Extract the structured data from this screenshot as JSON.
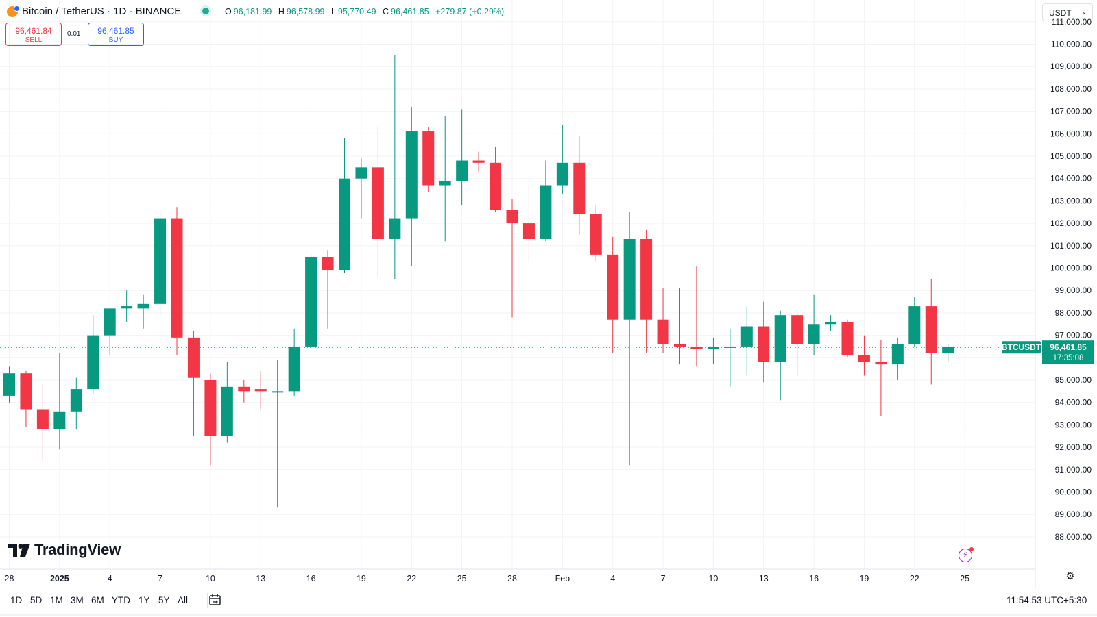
{
  "header": {
    "symbol_title": "Bitcoin / TetherUS · 1D · BINANCE",
    "ohlc": {
      "o_label": "O",
      "o_value": "96,181.99",
      "h_label": "H",
      "h_value": "96,578.99",
      "l_label": "L",
      "l_value": "95,770.49",
      "c_label": "C",
      "c_value": "96,461.85",
      "change": "+279.87 (+0.29%)"
    },
    "status_color": "#22ab94"
  },
  "trade": {
    "sell_price": "96,461.84",
    "sell_label": "SELL",
    "spread": "0.01",
    "buy_price": "96,461.85",
    "buy_label": "BUY"
  },
  "currency_select": "USDT",
  "price_axis": {
    "top_partial": "111,000.00",
    "labels": [
      "110,000.00",
      "109,000.00",
      "108,000.00",
      "107,000.00",
      "106,000.00",
      "105,000.00",
      "104,000.00",
      "103,000.00",
      "102,000.00",
      "101,000.00",
      "100,000.00",
      "99,000.00",
      "98,000.00",
      "97,000.00",
      "95,000.00",
      "94,000.00",
      "93,000.00",
      "92,000.00",
      "91,000.00",
      "90,000.00",
      "89,000.00",
      "88,000.00"
    ]
  },
  "last_price": {
    "symbol_label": "BTCUSDT",
    "price": "96,461.85",
    "countdown": "17:35:08",
    "color": "#089981"
  },
  "colors": {
    "up": "#089981",
    "down": "#f23645",
    "grid": "#f2f3f6"
  },
  "logo_text": "TradingView",
  "time_labels": [
    {
      "label": "28",
      "bold": false
    },
    {
      "label": "2025",
      "bold": true
    },
    {
      "label": "4",
      "bold": false
    },
    {
      "label": "7",
      "bold": false
    },
    {
      "label": "10",
      "bold": false
    },
    {
      "label": "13",
      "bold": false
    },
    {
      "label": "16",
      "bold": false
    },
    {
      "label": "19",
      "bold": false
    },
    {
      "label": "22",
      "bold": false
    },
    {
      "label": "25",
      "bold": false
    },
    {
      "label": "28",
      "bold": false
    },
    {
      "label": "Feb",
      "bold": false
    },
    {
      "label": "4",
      "bold": false
    },
    {
      "label": "7",
      "bold": false
    },
    {
      "label": "10",
      "bold": false
    },
    {
      "label": "13",
      "bold": false
    },
    {
      "label": "16",
      "bold": false
    },
    {
      "label": "19",
      "bold": false
    },
    {
      "label": "22",
      "bold": false
    },
    {
      "label": "25",
      "bold": false
    }
  ],
  "ranges": [
    "1D",
    "5D",
    "1M",
    "3M",
    "6M",
    "YTD",
    "1Y",
    "5Y",
    "All"
  ],
  "clock": "11:54:53 UTC+5:30",
  "chart_data": {
    "type": "candlestick",
    "symbol": "BTCUSDT",
    "interval": "1D",
    "ylim": [
      87500,
      111000
    ],
    "x_start": "2024-12-28",
    "x_end": "2025-02-25",
    "candles": [
      {
        "date": "2024-12-28",
        "o": 94300,
        "h": 95600,
        "l": 94000,
        "c": 95300
      },
      {
        "date": "2024-12-29",
        "o": 95300,
        "h": 95400,
        "l": 92900,
        "c": 93700
      },
      {
        "date": "2024-12-30",
        "o": 93700,
        "h": 94800,
        "l": 91400,
        "c": 92800
      },
      {
        "date": "2024-12-31",
        "o": 92800,
        "h": 96200,
        "l": 91900,
        "c": 93600
      },
      {
        "date": "2025-01-01",
        "o": 93600,
        "h": 95100,
        "l": 92800,
        "c": 94600
      },
      {
        "date": "2025-01-02",
        "o": 94600,
        "h": 97900,
        "l": 94400,
        "c": 97000
      },
      {
        "date": "2025-01-03",
        "o": 97000,
        "h": 98200,
        "l": 96100,
        "c": 98200
      },
      {
        "date": "2025-01-04",
        "o": 98200,
        "h": 99000,
        "l": 97600,
        "c": 98300
      },
      {
        "date": "2025-01-05",
        "o": 98200,
        "h": 98800,
        "l": 97300,
        "c": 98400
      },
      {
        "date": "2025-01-06",
        "o": 98400,
        "h": 102500,
        "l": 97900,
        "c": 102200
      },
      {
        "date": "2025-01-07",
        "o": 102200,
        "h": 102700,
        "l": 96100,
        "c": 96900
      },
      {
        "date": "2025-01-08",
        "o": 96900,
        "h": 97200,
        "l": 92500,
        "c": 95100
      },
      {
        "date": "2025-01-09",
        "o": 95000,
        "h": 95300,
        "l": 91200,
        "c": 92500
      },
      {
        "date": "2025-01-10",
        "o": 92500,
        "h": 95800,
        "l": 92200,
        "c": 94700
      },
      {
        "date": "2025-01-11",
        "o": 94700,
        "h": 95000,
        "l": 94000,
        "c": 94500
      },
      {
        "date": "2025-01-12",
        "o": 94600,
        "h": 95400,
        "l": 93700,
        "c": 94500
      },
      {
        "date": "2025-01-13",
        "o": 94500,
        "h": 95900,
        "l": 89300,
        "c": 94500
      },
      {
        "date": "2025-01-14",
        "o": 94500,
        "h": 97300,
        "l": 94300,
        "c": 96500
      },
      {
        "date": "2025-01-15",
        "o": 96500,
        "h": 100600,
        "l": 96400,
        "c": 100500
      },
      {
        "date": "2025-01-16",
        "o": 100500,
        "h": 100800,
        "l": 97300,
        "c": 99900
      },
      {
        "date": "2025-01-17",
        "o": 99900,
        "h": 105800,
        "l": 99800,
        "c": 104000
      },
      {
        "date": "2025-01-18",
        "o": 104000,
        "h": 104900,
        "l": 102200,
        "c": 104500
      },
      {
        "date": "2025-01-19",
        "o": 104500,
        "h": 106300,
        "l": 99600,
        "c": 101300
      },
      {
        "date": "2025-01-20",
        "o": 101300,
        "h": 109500,
        "l": 99500,
        "c": 102200
      },
      {
        "date": "2025-01-21",
        "o": 102200,
        "h": 107200,
        "l": 100100,
        "c": 106100
      },
      {
        "date": "2025-01-22",
        "o": 106100,
        "h": 106300,
        "l": 103400,
        "c": 103700
      },
      {
        "date": "2025-01-23",
        "o": 103700,
        "h": 106800,
        "l": 101200,
        "c": 103900
      },
      {
        "date": "2025-01-24",
        "o": 103900,
        "h": 107100,
        "l": 102800,
        "c": 104800
      },
      {
        "date": "2025-01-25",
        "o": 104800,
        "h": 105200,
        "l": 104300,
        "c": 104700
      },
      {
        "date": "2025-01-26",
        "o": 104700,
        "h": 105400,
        "l": 102500,
        "c": 102600
      },
      {
        "date": "2025-01-27",
        "o": 102600,
        "h": 103100,
        "l": 97800,
        "c": 102000
      },
      {
        "date": "2025-01-28",
        "o": 102000,
        "h": 103800,
        "l": 100300,
        "c": 101300
      },
      {
        "date": "2025-01-29",
        "o": 101300,
        "h": 104800,
        "l": 101200,
        "c": 103700
      },
      {
        "date": "2025-01-30",
        "o": 103700,
        "h": 106400,
        "l": 103300,
        "c": 104700
      },
      {
        "date": "2025-01-31",
        "o": 104700,
        "h": 105900,
        "l": 101500,
        "c": 102400
      },
      {
        "date": "2025-02-01",
        "o": 102400,
        "h": 102800,
        "l": 100300,
        "c": 100600
      },
      {
        "date": "2025-02-02",
        "o": 100600,
        "h": 101400,
        "l": 96200,
        "c": 97700
      },
      {
        "date": "2025-02-03",
        "o": 97700,
        "h": 102500,
        "l": 91200,
        "c": 101300
      },
      {
        "date": "2025-02-04",
        "o": 101300,
        "h": 101700,
        "l": 96200,
        "c": 97700
      },
      {
        "date": "2025-02-05",
        "o": 97700,
        "h": 99100,
        "l": 96200,
        "c": 96600
      },
      {
        "date": "2025-02-06",
        "o": 96600,
        "h": 99100,
        "l": 95700,
        "c": 96500
      },
      {
        "date": "2025-02-07",
        "o": 96500,
        "h": 100100,
        "l": 95600,
        "c": 96400
      },
      {
        "date": "2025-02-08",
        "o": 96400,
        "h": 96900,
        "l": 95700,
        "c": 96500
      },
      {
        "date": "2025-02-09",
        "o": 96500,
        "h": 97300,
        "l": 94700,
        "c": 96500
      },
      {
        "date": "2025-02-10",
        "o": 96500,
        "h": 98300,
        "l": 95200,
        "c": 97400
      },
      {
        "date": "2025-02-11",
        "o": 97400,
        "h": 98500,
        "l": 94900,
        "c": 95800
      },
      {
        "date": "2025-02-12",
        "o": 95800,
        "h": 98100,
        "l": 94100,
        "c": 97900
      },
      {
        "date": "2025-02-13",
        "o": 97900,
        "h": 98000,
        "l": 95200,
        "c": 96600
      },
      {
        "date": "2025-02-14",
        "o": 96600,
        "h": 98800,
        "l": 96100,
        "c": 97500
      },
      {
        "date": "2025-02-15",
        "o": 97500,
        "h": 97900,
        "l": 97200,
        "c": 97600
      },
      {
        "date": "2025-02-16",
        "o": 97600,
        "h": 97700,
        "l": 96000,
        "c": 96100
      },
      {
        "date": "2025-02-17",
        "o": 96100,
        "h": 97000,
        "l": 95200,
        "c": 95800
      },
      {
        "date": "2025-02-18",
        "o": 95800,
        "h": 96800,
        "l": 93400,
        "c": 95700
      },
      {
        "date": "2025-02-19",
        "o": 95700,
        "h": 96900,
        "l": 95000,
        "c": 96600
      },
      {
        "date": "2025-02-20",
        "o": 96600,
        "h": 98700,
        "l": 96500,
        "c": 98300
      },
      {
        "date": "2025-02-21",
        "o": 98300,
        "h": 99500,
        "l": 94800,
        "c": 96200
      },
      {
        "date": "2025-02-22",
        "o": 96200,
        "h": 96600,
        "l": 95800,
        "c": 96500
      }
    ]
  }
}
